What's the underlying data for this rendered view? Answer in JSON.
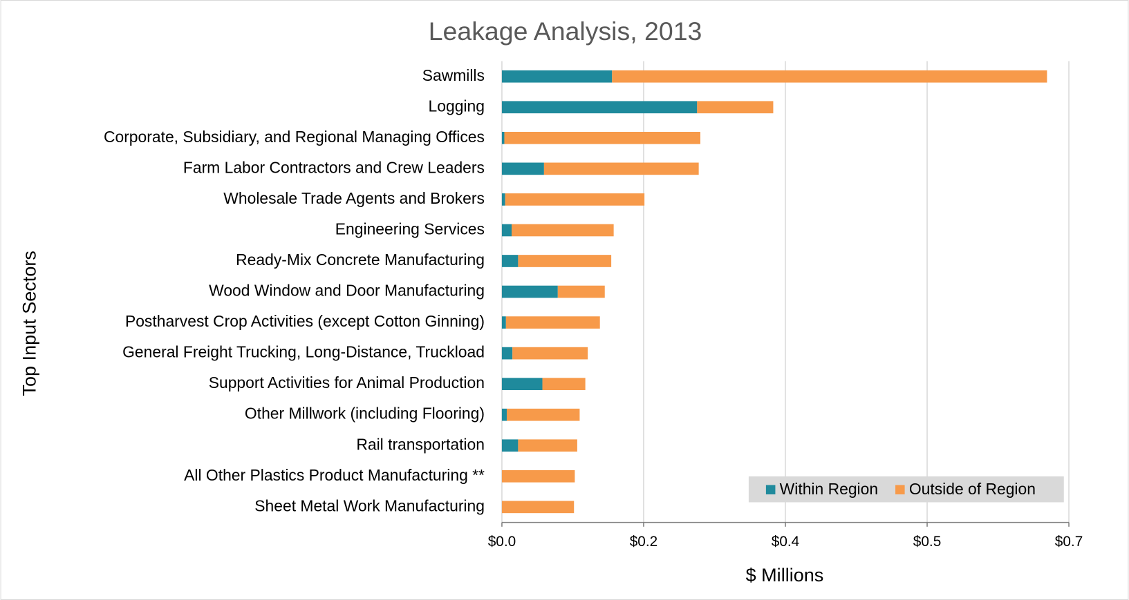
{
  "chart_data": {
    "type": "barh-stacked",
    "title": "Leakage Analysis, 2013",
    "x_label": "$ Millions",
    "y_label": "Top Input Sectors",
    "categories": [
      "Sawmills",
      "Logging",
      "Corporate, Subsidiary, and Regional Managing Offices",
      "Farm Labor Contractors and Crew Leaders",
      "Wholesale Trade Agents and Brokers",
      "Engineering Services",
      "Ready-Mix Concrete Manufacturing",
      "Wood Window and Door Manufacturing",
      "Postharvest Crop Activities (except Cotton Ginning)",
      "General Freight Trucking, Long-Distance, Truckload",
      "Support Activities for Animal Production",
      "Other Millwork (including Flooring)",
      "Rail transportation",
      "All Other Plastics Product Manufacturing **",
      "Sheet Metal Work Manufacturing"
    ],
    "series": [
      {
        "name": "Within Region",
        "color": "#1f8a9c",
        "values": [
          0.136,
          0.241,
          0.003,
          0.052,
          0.004,
          0.012,
          0.02,
          0.069,
          0.005,
          0.013,
          0.05,
          0.006,
          0.02,
          0,
          0
        ]
      },
      {
        "name": "Outside of Region",
        "color": "#f79a4a",
        "values": [
          0.537,
          0.094,
          0.242,
          0.191,
          0.172,
          0.126,
          0.115,
          0.058,
          0.116,
          0.093,
          0.053,
          0.09,
          0.073,
          0.09,
          0.089
        ]
      }
    ],
    "xlim": [
      0,
      0.7
    ],
    "xticks": [
      {
        "value": 0,
        "label": "$0.0"
      },
      {
        "value": 0.175,
        "label": "$0.2"
      },
      {
        "value": 0.35,
        "label": "$0.4"
      },
      {
        "value": 0.525,
        "label": "$0.5"
      },
      {
        "value": 0.7,
        "label": "$0.7"
      }
    ],
    "grid": true,
    "legend": "bottom right"
  }
}
